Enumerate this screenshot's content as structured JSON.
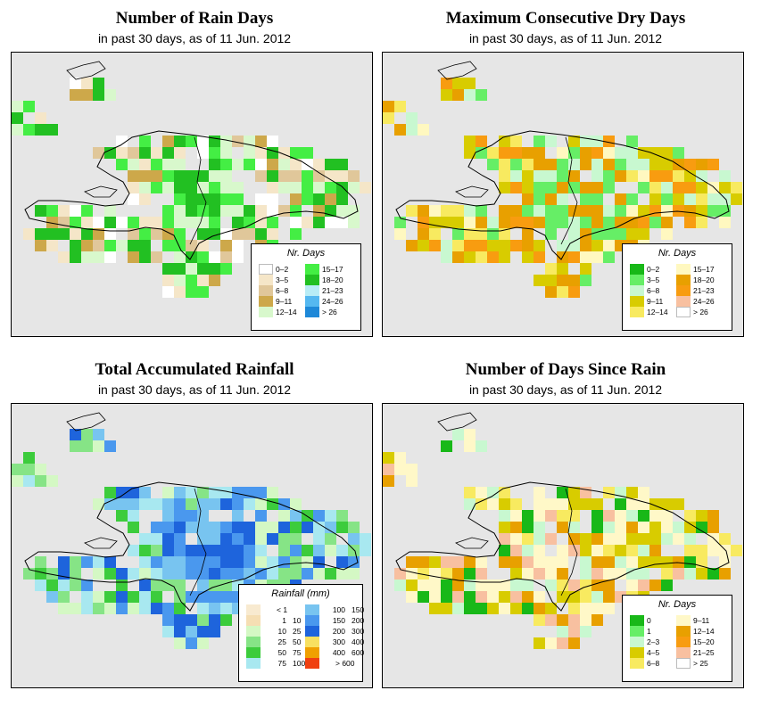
{
  "panels": [
    {
      "id": "rain-days",
      "title": "Number of Rain Days",
      "subtitle": "in past 30 days, as of  11 Jun. 2012",
      "legend_title": "Nr. Days",
      "legend": [
        {
          "label": "0–2",
          "color": "#ffffff"
        },
        {
          "label": "3–5",
          "color": "#f5e6c8"
        },
        {
          "label": "6–8",
          "color": "#e0c79a"
        },
        {
          "label": "9–11",
          "color": "#cda84a"
        },
        {
          "label": "12–14",
          "color": "#d8f8cc"
        },
        {
          "label": "15–17",
          "color": "#44ee44"
        },
        {
          "label": "18–20",
          "color": "#22c022"
        },
        {
          "label": "21–23",
          "color": "#b8ecf6"
        },
        {
          "label": "24–26",
          "color": "#55b8f0"
        },
        {
          "label": "> 26",
          "color": "#1e88d8"
        }
      ]
    },
    {
      "id": "dry-days",
      "title": "Maximum Consecutive Dry Days",
      "subtitle": "in past 30 days, as of  11 Jun. 2012",
      "legend_title": "Nr. Days",
      "legend": [
        {
          "label": "0–2",
          "color": "#18b818"
        },
        {
          "label": "3–5",
          "color": "#66ee66"
        },
        {
          "label": "6–8",
          "color": "#c8f8d0"
        },
        {
          "label": "9–11",
          "color": "#d8cc00"
        },
        {
          "label": "12–14",
          "color": "#f8ea60"
        },
        {
          "label": "15–17",
          "color": "#fff8c0"
        },
        {
          "label": "18–20",
          "color": "#e8a000"
        },
        {
          "label": "21–23",
          "color": "#f89c10"
        },
        {
          "label": "24–26",
          "color": "#f8c0a0"
        },
        {
          "label": "> 26",
          "color": "#ffffff"
        }
      ]
    },
    {
      "id": "rainfall",
      "title": "Total Accumulated Rainfall",
      "subtitle": "in past 30 days, as of  11 Jun. 2012",
      "legend_title": "Rainfall (mm)",
      "legend": [
        {
          "from": "",
          "to": "< 1",
          "color": "#f8ead0"
        },
        {
          "from": "1",
          "to": "10",
          "color": "#f5deb3"
        },
        {
          "from": "10",
          "to": "25",
          "color": "#d4f8c4"
        },
        {
          "from": "25",
          "to": "50",
          "color": "#86e486"
        },
        {
          "from": "50",
          "to": "75",
          "color": "#3ccc3c"
        },
        {
          "from": "75",
          "to": "100",
          "color": "#a8e8f0"
        },
        {
          "from": "100",
          "to": "150",
          "color": "#78c4f0"
        },
        {
          "from": "150",
          "to": "200",
          "color": "#4a98ee"
        },
        {
          "from": "200",
          "to": "300",
          "color": "#1e64dc"
        },
        {
          "from": "300",
          "to": "400",
          "color": "#f8e060"
        },
        {
          "from": "400",
          "to": "600",
          "color": "#f0a000"
        },
        {
          "from": "",
          "to": "> 600",
          "color": "#f04010"
        }
      ]
    },
    {
      "id": "since-rain",
      "title": "Number of Days Since Rain",
      "subtitle": "in past 30 days, as of  11 Jun. 2012",
      "legend_title": "Nr. Days",
      "legend": [
        {
          "label": "0",
          "color": "#18b818"
        },
        {
          "label": "1",
          "color": "#66ee66"
        },
        {
          "label": "2–3",
          "color": "#c8f8d0"
        },
        {
          "label": "4–5",
          "color": "#d8cc00"
        },
        {
          "label": "6–8",
          "color": "#f8ea60"
        },
        {
          "label": "9–11",
          "color": "#fff8c8"
        },
        {
          "label": "12–14",
          "color": "#e8a000"
        },
        {
          "label": "15–20",
          "color": "#f89c10"
        },
        {
          "label": "21–25",
          "color": "#f8c0a0"
        },
        {
          "label": "> 25",
          "color": "#ffffff"
        }
      ]
    }
  ]
}
